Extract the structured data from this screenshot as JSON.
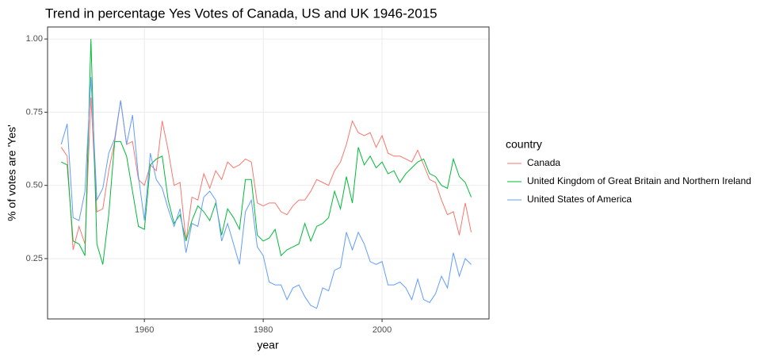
{
  "chart_data": {
    "type": "line",
    "title": "Trend in percentage Yes Votes of Canada, US and UK 1946-2015",
    "x_label": "year",
    "y_label": "% of votes are 'Yes'",
    "legend_title": "country",
    "legend": "right",
    "grid": true,
    "xlim": [
      1943.7,
      2018
    ],
    "ylim": [
      0.044,
      1.041
    ],
    "xticks": [
      1960,
      1980,
      2000
    ],
    "yticks": [
      0.25,
      {
        "value": 0.5,
        "label": "0.50"
      },
      0.75,
      {
        "value": 1,
        "label": "1.00"
      }
    ],
    "x": [
      1946,
      1947,
      1948,
      1949,
      1950,
      1951,
      1952,
      1953,
      1954,
      1955,
      1956,
      1957,
      1958,
      1959,
      1960,
      1961,
      1962,
      1963,
      1964,
      1965,
      1966,
      1967,
      1968,
      1969,
      1970,
      1971,
      1972,
      1973,
      1974,
      1975,
      1976,
      1977,
      1978,
      1979,
      1980,
      1981,
      1982,
      1983,
      1984,
      1985,
      1986,
      1987,
      1988,
      1989,
      1990,
      1991,
      1992,
      1993,
      1994,
      1995,
      1996,
      1997,
      1998,
      1999,
      2000,
      2001,
      2002,
      2003,
      2004,
      2005,
      2006,
      2007,
      2008,
      2009,
      2010,
      2011,
      2012,
      2013,
      2014,
      2015
    ],
    "series": [
      {
        "name": "Canada",
        "color": "#F8766D",
        "values": [
          0.63,
          0.6,
          0.28,
          0.36,
          0.3,
          0.8,
          0.41,
          0.42,
          0.55,
          0.65,
          0.79,
          0.64,
          0.65,
          0.52,
          0.5,
          0.57,
          0.55,
          0.72,
          0.62,
          0.5,
          0.51,
          0.31,
          0.46,
          0.45,
          0.54,
          0.49,
          0.55,
          0.52,
          0.58,
          0.56,
          0.57,
          0.59,
          0.58,
          0.44,
          0.43,
          0.44,
          0.44,
          0.41,
          0.4,
          0.43,
          0.45,
          0.45,
          0.48,
          0.52,
          0.51,
          0.5,
          0.55,
          0.58,
          0.64,
          0.72,
          0.68,
          0.67,
          0.68,
          0.63,
          0.67,
          0.61,
          0.6,
          0.6,
          0.59,
          0.58,
          0.62,
          0.57,
          0.52,
          0.51,
          0.45,
          0.4,
          0.41,
          0.33,
          0.44,
          0.34
        ]
      },
      {
        "name": "United Kingdom of Great Britain and Northern Ireland",
        "color": "#00BA38",
        "values": [
          0.58,
          0.57,
          0.31,
          0.3,
          0.26,
          1.0,
          0.3,
          0.23,
          0.4,
          0.65,
          0.65,
          0.6,
          0.48,
          0.36,
          0.35,
          0.57,
          0.59,
          0.6,
          0.45,
          0.37,
          0.4,
          0.31,
          0.38,
          0.43,
          0.41,
          0.38,
          0.44,
          0.33,
          0.42,
          0.39,
          0.35,
          0.52,
          0.52,
          0.33,
          0.31,
          0.32,
          0.35,
          0.26,
          0.28,
          0.29,
          0.3,
          0.37,
          0.31,
          0.36,
          0.37,
          0.39,
          0.48,
          0.42,
          0.53,
          0.44,
          0.63,
          0.57,
          0.6,
          0.56,
          0.58,
          0.54,
          0.55,
          0.51,
          0.54,
          0.56,
          0.58,
          0.59,
          0.54,
          0.53,
          0.5,
          0.49,
          0.59,
          0.53,
          0.51,
          0.46
        ]
      },
      {
        "name": "United States of America",
        "color": "#619CFF",
        "values": [
          0.64,
          0.71,
          0.39,
          0.38,
          0.48,
          0.87,
          0.45,
          0.49,
          0.61,
          0.66,
          0.79,
          0.64,
          0.74,
          0.53,
          0.38,
          0.61,
          0.52,
          0.49,
          0.42,
          0.36,
          0.42,
          0.27,
          0.37,
          0.36,
          0.46,
          0.48,
          0.45,
          0.31,
          0.37,
          0.3,
          0.23,
          0.41,
          0.45,
          0.29,
          0.26,
          0.17,
          0.16,
          0.16,
          0.11,
          0.15,
          0.16,
          0.12,
          0.09,
          0.08,
          0.15,
          0.14,
          0.21,
          0.22,
          0.34,
          0.28,
          0.34,
          0.3,
          0.24,
          0.23,
          0.24,
          0.16,
          0.16,
          0.17,
          0.15,
          0.11,
          0.18,
          0.11,
          0.1,
          0.13,
          0.19,
          0.15,
          0.27,
          0.19,
          0.25,
          0.23
        ]
      }
    ]
  }
}
